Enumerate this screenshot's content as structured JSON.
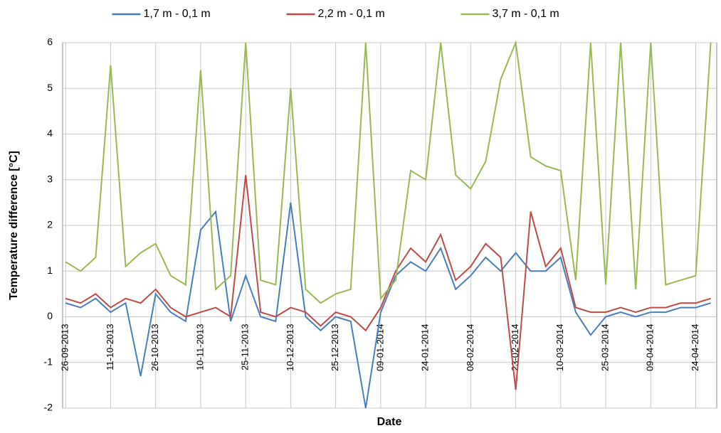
{
  "chart_data": {
    "type": "line",
    "x_label": "Date",
    "y_label": "Temperature difference [°C]",
    "x": [
      "26-09-2013",
      "01-10-2013",
      "06-10-2013",
      "11-10-2013",
      "16-10-2013",
      "21-10-2013",
      "26-10-2013",
      "31-10-2013",
      "05-11-2013",
      "10-11-2013",
      "15-11-2013",
      "20-11-2013",
      "25-11-2013",
      "30-11-2013",
      "05-12-2013",
      "10-12-2013",
      "15-12-2013",
      "20-12-2013",
      "25-12-2013",
      "30-12-2013",
      "04-01-2014",
      "09-01-2014",
      "14-01-2014",
      "19-01-2014",
      "24-01-2014",
      "29-01-2014",
      "03-02-2014",
      "08-02-2014",
      "13-02-2014",
      "18-02-2014",
      "23-02-2014",
      "28-02-2014",
      "05-03-2014",
      "10-03-2014",
      "15-03-2014",
      "20-03-2014",
      "25-03-2014",
      "30-03-2014",
      "04-04-2014",
      "09-04-2014",
      "14-04-2014",
      "19-04-2014",
      "24-04-2014",
      "29-04-2014"
    ],
    "series": [
      {
        "name": "1,7 m - 0,1 m",
        "color": "#4a7ebb",
        "values": [
          0.3,
          0.2,
          0.4,
          0.1,
          0.3,
          -1.3,
          0.5,
          0.1,
          -0.1,
          1.9,
          2.3,
          -0.1,
          0.9,
          0.0,
          -0.1,
          2.5,
          0.0,
          -0.3,
          0.0,
          -0.1,
          -2.0,
          0.1,
          0.9,
          1.2,
          1.0,
          1.5,
          0.6,
          0.9,
          1.3,
          1.0,
          1.4,
          1.0,
          1.0,
          1.3,
          0.1,
          -0.4,
          0.0,
          0.1,
          0.0,
          0.1,
          0.1,
          0.2,
          0.2,
          0.3
        ]
      },
      {
        "name": "2,2 m - 0,1 m",
        "color": "#be4b48",
        "values": [
          0.4,
          0.3,
          0.5,
          0.2,
          0.4,
          0.3,
          0.6,
          0.2,
          0.0,
          0.1,
          0.2,
          0.0,
          3.1,
          0.1,
          0.0,
          0.2,
          0.1,
          -0.2,
          0.1,
          0.0,
          -0.3,
          0.2,
          1.0,
          1.5,
          1.2,
          1.8,
          0.8,
          1.1,
          1.6,
          1.3,
          -1.6,
          2.3,
          1.1,
          1.5,
          0.2,
          0.1,
          0.1,
          0.2,
          0.1,
          0.2,
          0.2,
          0.3,
          0.3,
          0.4
        ]
      },
      {
        "name": "3,7 m - 0,1 m",
        "color": "#98b954",
        "values": [
          1.2,
          1.0,
          1.3,
          5.5,
          1.1,
          1.4,
          1.6,
          0.9,
          0.7,
          5.4,
          0.6,
          0.9,
          6,
          0.8,
          0.7,
          5.0,
          0.6,
          0.3,
          0.5,
          0.6,
          6,
          0.4,
          0.8,
          3.2,
          3.0,
          6,
          3.1,
          2.8,
          3.4,
          5.2,
          6,
          3.5,
          3.3,
          3.2,
          0.8,
          6,
          0.7,
          6,
          0.6,
          6,
          0.7,
          0.8,
          0.9,
          6
        ]
      }
    ],
    "xlim": [
      "25-09-2013",
      "01-05-2014"
    ],
    "xticks": [
      "26-09-2013",
      "11-10-2013",
      "26-10-2013",
      "10-11-2013",
      "25-11-2013",
      "10-12-2013",
      "25-12-2013",
      "09-01-2014",
      "24-01-2014",
      "08-02-2014",
      "23-02-2014",
      "10-03-2014",
      "25-03-2014",
      "09-04-2014",
      "24-04-2014"
    ],
    "ylim": [
      -2,
      6
    ],
    "yticks": [
      -2,
      -1,
      0,
      1,
      2,
      3,
      4,
      5,
      6
    ],
    "grid": true,
    "legend": "top"
  }
}
